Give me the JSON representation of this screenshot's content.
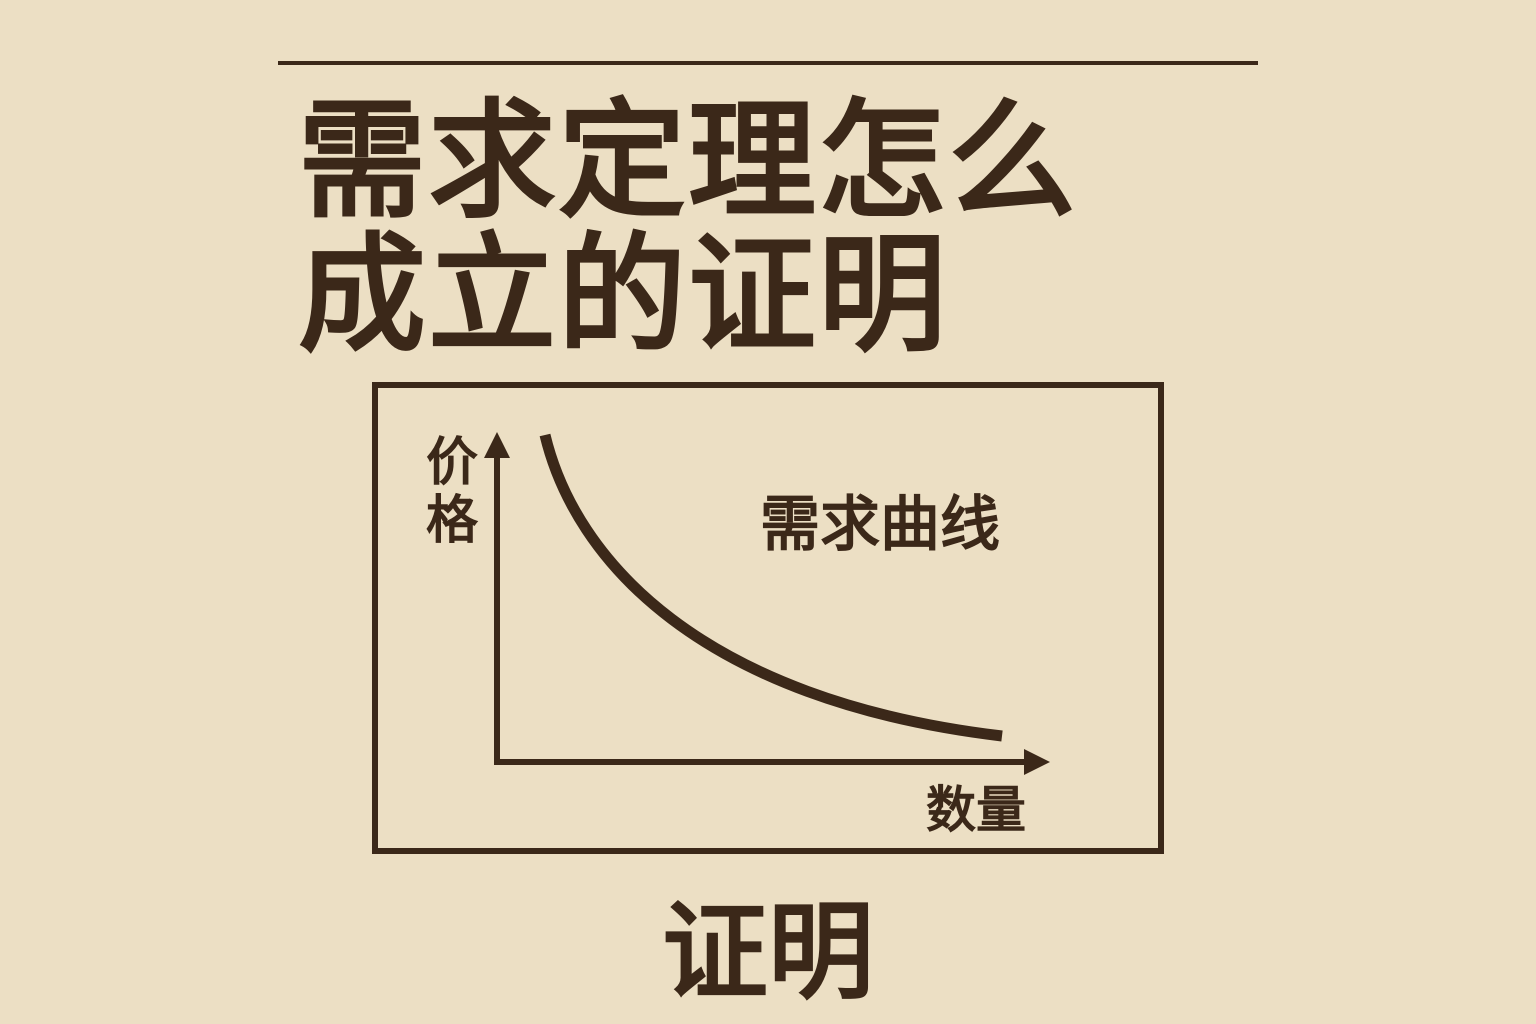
{
  "title": {
    "line1": "需求定理怎么",
    "line2": "成立的证明"
  },
  "diagram": {
    "y_axis_label": "价格",
    "x_axis_label": "数量",
    "curve_label": "需求曲线",
    "curve_shape": "downward-sloping convex"
  },
  "footer": "证明",
  "colors": {
    "background": "#ecdfc4",
    "ink": "#3b2819"
  }
}
